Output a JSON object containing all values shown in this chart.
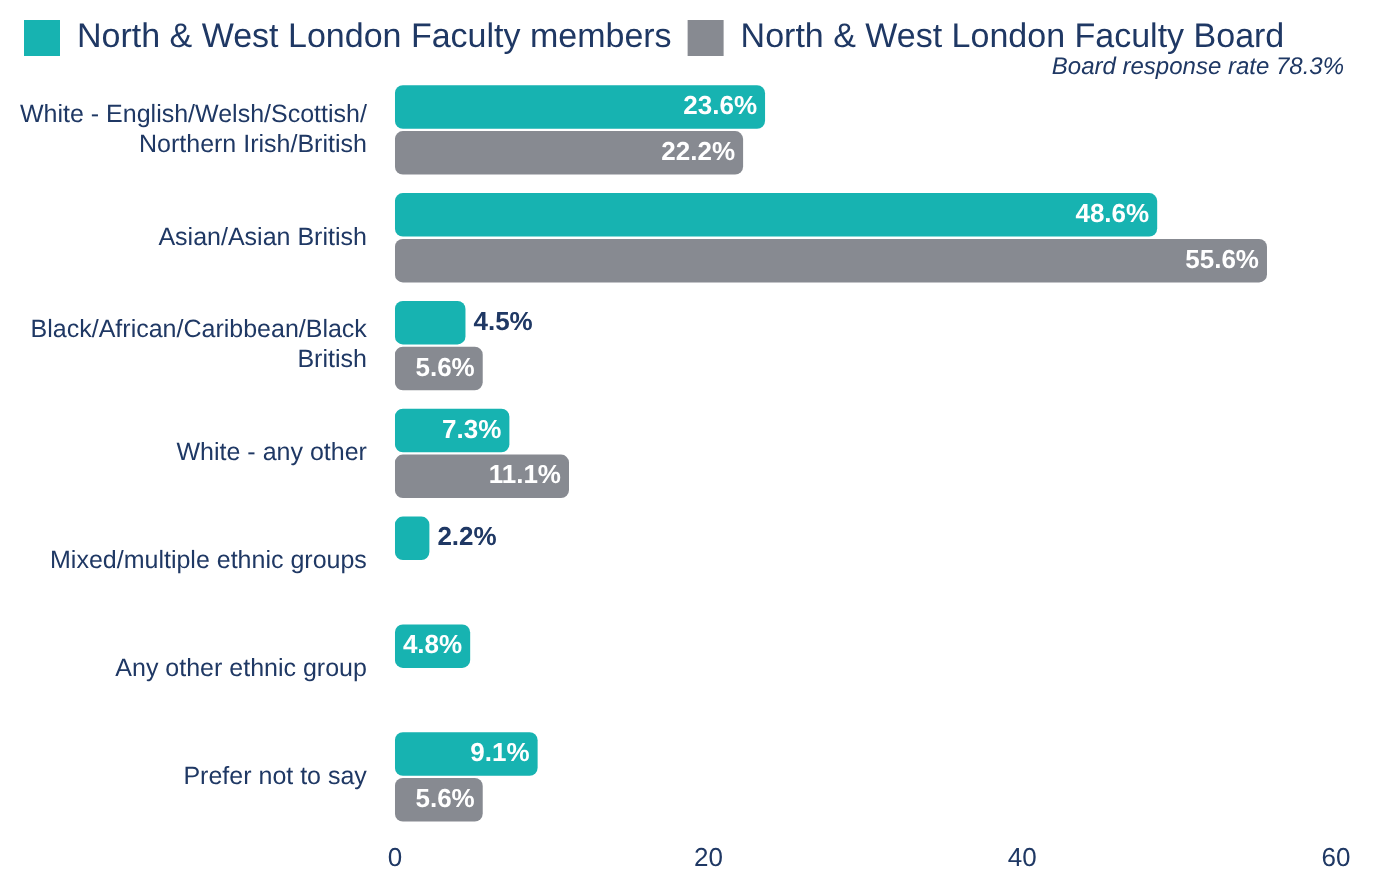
{
  "chart_data": {
    "type": "bar",
    "orientation": "horizontal",
    "categories": [
      "White - English/Welsh/Scottish/\nNorthern Irish/British",
      "Asian/Asian British",
      "Black/African/Caribbean/Black\nBritish",
      "White - any other",
      "Mixed/multiple ethnic groups",
      "Any other ethnic group",
      "Prefer not to say"
    ],
    "series": [
      {
        "name": "North & West London Faculty members",
        "color": "#17b3b1",
        "values": [
          23.6,
          48.6,
          4.5,
          7.3,
          2.2,
          4.8,
          9.1
        ],
        "value_labels": [
          "23.6%",
          "48.6%",
          "4.5%",
          "7.3%",
          "2.2%",
          "4.8%",
          "9.1%"
        ]
      },
      {
        "name": "North & West London Faculty Board",
        "color": "#878a91",
        "values": [
          22.2,
          55.6,
          5.6,
          11.1,
          null,
          null,
          5.6
        ],
        "value_labels": [
          "22.2%",
          "55.6%",
          "5.6%",
          "11.1%",
          null,
          null,
          "5.6%"
        ]
      }
    ],
    "xlim": [
      0,
      60
    ],
    "xticks": [
      0,
      20,
      40,
      60
    ],
    "grid": false,
    "legend": "top left",
    "annotations": [
      "Board response rate 78.3%"
    ]
  }
}
